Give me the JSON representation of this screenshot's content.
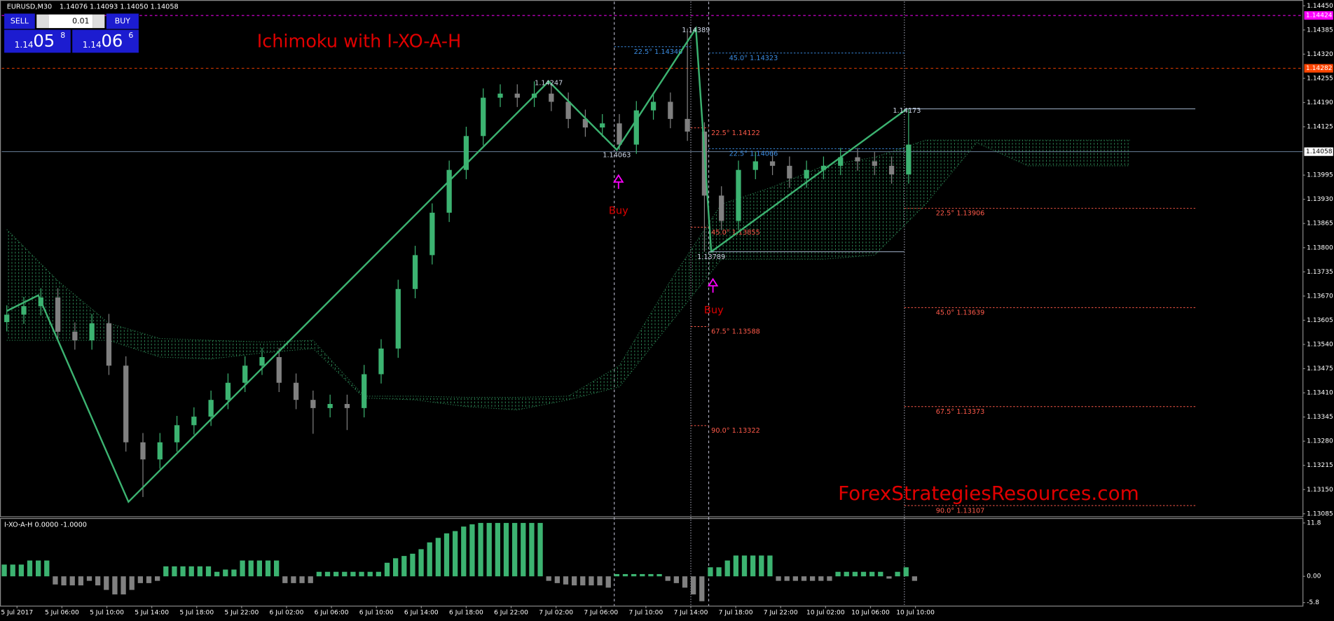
{
  "header": {
    "symbol": "EURUSD,M30",
    "ohlc": "1.14076 1.14093 1.14050 1.14058"
  },
  "trade_panel": {
    "sell": "SELL",
    "lot": "0.01",
    "buy": "BUY",
    "bid_big": "1.14",
    "bid_main": "05",
    "bid_pip": "8",
    "ask_big": "1.14",
    "ask_main": "06",
    "ask_pip": "6"
  },
  "title": "Ichimoku with I-XO-A-H",
  "watermark": "ForexStrategiesResources.com",
  "signals": [
    {
      "label": "Buy"
    },
    {
      "label": "Buy"
    }
  ],
  "price_chart": {
    "ylim": [
      1.13078,
      1.14461
    ],
    "yticks": [
      {
        "value": 1.1445,
        "label": "1.14450"
      },
      1.14385,
      {
        "value": 1.1432,
        "label": "1.14320"
      },
      1.14255,
      {
        "value": 1.1419,
        "label": "1.14190"
      },
      1.14125,
      1.13995,
      {
        "value": 1.1393,
        "label": "1.13930"
      },
      1.13865,
      {
        "value": 1.138,
        "label": "1.13800"
      },
      1.13735,
      {
        "value": 1.1367,
        "label": "1.13670"
      },
      1.13605,
      {
        "value": 1.1354,
        "label": "1.13540"
      },
      1.13475,
      {
        "value": 1.1341,
        "label": "1.13410"
      },
      1.13345,
      {
        "value": 1.1328,
        "label": "1.13280"
      },
      1.13215,
      {
        "value": 1.1315,
        "label": "1.13150"
      },
      1.13085
    ],
    "price_markers": [
      {
        "value": 1.14424,
        "color": "#ff00ff"
      },
      {
        "value": 1.14282,
        "color": "#ff4500"
      },
      {
        "value": 1.14058,
        "color": "#ffffff"
      }
    ],
    "xlabels": [
      "5 Jul 2017",
      "5 Jul 06:00",
      "5 Jul 10:00",
      "5 Jul 14:00",
      "5 Jul 18:00",
      "5 Jul 22:00",
      "6 Jul 02:00",
      "6 Jul 06:00",
      "6 Jul 10:00",
      "6 Jul 14:00",
      "6 Jul 18:00",
      "6 Jul 22:00",
      "7 Jul 02:00",
      "7 Jul 06:00",
      "7 Jul 10:00",
      "7 Jul 14:00",
      "7 Jul 18:00",
      "7 Jul 22:00",
      "10 Jul 02:00",
      "10 Jul 06:00",
      "10 Jul 10:00"
    ],
    "up_color": "#3cb371",
    "down_color": "#808080",
    "candles": {
      "open": [
        1.136,
        1.1362,
        1.13643,
        1.13666,
        1.13574,
        1.13551,
        1.13597,
        1.13483,
        1.13277,
        1.13231,
        1.13277,
        1.13323,
        1.13346,
        1.13391,
        1.13437,
        1.13483,
        1.13506,
        1.13437,
        1.13391,
        1.13369,
        1.1338,
        1.13369,
        1.1346,
        1.13529,
        1.13689,
        1.1378,
        1.13894,
        1.14009,
        1.141,
        1.14203,
        1.14214,
        1.14203,
        1.14214,
        1.14192,
        1.14146,
        1.14123,
        1.14134,
        1.14077,
        1.14169,
        1.14192,
        1.14146,
        1.14112,
        1.1394,
        1.13872,
        1.14009,
        1.14032,
        1.1402,
        1.13986,
        1.14009,
        1.1402,
        1.14043,
        1.14032,
        1.1402,
        1.13997
      ],
      "high": [
        1.13645,
        1.13668,
        1.13691,
        1.13691,
        1.13599,
        1.13622,
        1.13622,
        1.13508,
        1.13302,
        1.13302,
        1.13348,
        1.13371,
        1.13416,
        1.13462,
        1.13508,
        1.13531,
        1.13531,
        1.13462,
        1.13416,
        1.13405,
        1.13405,
        1.13485,
        1.13554,
        1.13714,
        1.13805,
        1.13919,
        1.14034,
        1.14125,
        1.14228,
        1.14239,
        1.14239,
        1.14247,
        1.14239,
        1.14217,
        1.14171,
        1.14159,
        1.14159,
        1.14194,
        1.14217,
        1.14217,
        1.14389,
        1.14137,
        1.13965,
        1.14034,
        1.14057,
        1.14057,
        1.14045,
        1.14034,
        1.14045,
        1.14068,
        1.14068,
        1.14057,
        1.14045,
        1.14173
      ],
      "low": [
        1.13575,
        1.13595,
        1.13618,
        1.13549,
        1.13526,
        1.13526,
        1.13458,
        1.13252,
        1.1313,
        1.13206,
        1.13252,
        1.13298,
        1.13321,
        1.13366,
        1.13412,
        1.13458,
        1.13412,
        1.13366,
        1.133,
        1.13344,
        1.1331,
        1.13344,
        1.13435,
        1.13504,
        1.13664,
        1.13755,
        1.13869,
        1.13984,
        1.14075,
        1.14178,
        1.14178,
        1.14178,
        1.14167,
        1.14121,
        1.14098,
        1.14098,
        1.14063,
        1.14052,
        1.14144,
        1.14121,
        1.14087,
        1.13789,
        1.13847,
        1.13847,
        1.13984,
        1.13995,
        1.13961,
        1.13961,
        1.13984,
        1.13995,
        1.14007,
        1.13995,
        1.13972,
        1.13972
      ],
      "close": [
        1.1362,
        1.13643,
        1.13666,
        1.13574,
        1.13551,
        1.13597,
        1.13483,
        1.13277,
        1.13231,
        1.13277,
        1.13323,
        1.13346,
        1.13391,
        1.13437,
        1.13483,
        1.13506,
        1.13437,
        1.13391,
        1.13369,
        1.1338,
        1.13369,
        1.1346,
        1.13529,
        1.13689,
        1.1378,
        1.13894,
        1.14009,
        1.141,
        1.14203,
        1.14214,
        1.14203,
        1.14214,
        1.14192,
        1.14146,
        1.14123,
        1.14134,
        1.14077,
        1.14169,
        1.14192,
        1.14146,
        1.14112,
        1.1394,
        1.13872,
        1.14009,
        1.14032,
        1.1402,
        1.13986,
        1.14009,
        1.1402,
        1.14043,
        1.14032,
        1.1402,
        1.13997,
        1.14077
      ]
    },
    "cloud": {
      "x": [
        0,
        3,
        6,
        9,
        12,
        15,
        18,
        21,
        24,
        27,
        30,
        33,
        36,
        39,
        42,
        45,
        48,
        51,
        54,
        57,
        60,
        63,
        66
      ],
      "span_a": [
        1.13849,
        1.13711,
        1.13597,
        1.13556,
        1.13551,
        1.13547,
        1.13551,
        1.13401,
        1.13401,
        1.13398,
        1.13398,
        1.13401,
        1.13483,
        1.13711,
        1.13917,
        1.13963,
        1.1402,
        1.14043,
        1.14089,
        1.14089,
        1.14089,
        1.14089,
        1.14089
      ],
      "span_b": [
        1.13551,
        1.13551,
        1.13551,
        1.13506,
        1.13501,
        1.13517,
        1.13529,
        1.13396,
        1.13391,
        1.13373,
        1.13364,
        1.13391,
        1.13426,
        1.13597,
        1.13769,
        1.13769,
        1.13769,
        1.1378,
        1.13917,
        1.14082,
        1.1402,
        1.1402,
        1.1402
      ],
      "color": "#2e8b57"
    },
    "zigzag": {
      "color": "#3cb371",
      "points": [
        {
          "x": 0,
          "price": 1.1363
        },
        {
          "x": 1.85,
          "price": 1.13672
        },
        {
          "x": 7.15,
          "price": 1.13117
        },
        {
          "x": 31.85,
          "price": 1.14247
        },
        {
          "x": 35.85,
          "price": 1.14063
        },
        {
          "x": 40.5,
          "price": 1.14389
        },
        {
          "x": 41.4,
          "price": 1.13789
        },
        {
          "x": 52.9,
          "price": 1.14173
        }
      ]
    },
    "fan_up": [
      {
        "value": 1.1434,
        "label": "22.5° 1.14340"
      },
      {
        "value": 1.14323,
        "label": "45.0° 1.14323"
      },
      {
        "value": 1.14066,
        "label": "22.5° 1.14066"
      }
    ],
    "fan_down": [
      {
        "value": 1.14122,
        "label": "22.5° 1.14122"
      },
      {
        "value": 1.13855,
        "label": "45.0° 1.13855"
      },
      {
        "value": 1.13588,
        "label": "67.5° 1.13588"
      },
      {
        "value": 1.13322,
        "label": "90.0° 1.13322"
      }
    ],
    "fan_right": [
      {
        "value": 1.13906,
        "label": "22.5° 1.13906"
      },
      {
        "value": 1.13639,
        "label": "45.0° 1.13639"
      },
      {
        "value": 1.13373,
        "label": "67.5° 1.13373"
      },
      {
        "value": 1.13107,
        "label": "90.0° 1.13107"
      }
    ]
  },
  "indicator": {
    "label": "I-XO-A-H 0.0000 -1.0000",
    "ylim": [
      -6.3,
      12.5
    ],
    "yticks": [
      11.8,
      {
        "value": 0,
        "label": "0.00"
      },
      -5.8
    ],
    "values": [
      2.6,
      2.6,
      2.6,
      3.5,
      3.5,
      3.5,
      -1.8,
      -2,
      -2,
      -2,
      -1,
      -2,
      -3,
      -4,
      -4,
      -3,
      -1.5,
      -1.5,
      -1,
      2.2,
      2.2,
      2.2,
      2.2,
      2.2,
      2.2,
      1,
      1.5,
      1.5,
      3.5,
      3.5,
      3.5,
      3.5,
      3.5,
      -1.5,
      -1.5,
      -1.5,
      -1.5,
      1,
      1,
      1,
      1,
      1,
      1,
      1,
      1,
      3,
      4,
      4.5,
      5,
      6,
      7.5,
      8.5,
      9.5,
      10,
      11,
      11.5,
      11.8,
      11.8,
      11.8,
      11.8,
      11.8,
      11.8,
      11.8,
      11.8,
      -1,
      -1.5,
      -1.8,
      -2,
      -2,
      -2,
      -2,
      -2.5,
      0.5,
      0.5,
      0.5,
      0.5,
      0.5,
      0.5,
      -1,
      -1.5,
      -2.5,
      -4,
      -5.5,
      2,
      2,
      3.5,
      4.6,
      4.6,
      4.6,
      4.6,
      4.6,
      -1,
      -1,
      -1,
      -1,
      -1,
      -1,
      -1,
      1,
      1,
      1,
      1,
      1,
      1,
      -0.5,
      1,
      2,
      -1
    ]
  }
}
